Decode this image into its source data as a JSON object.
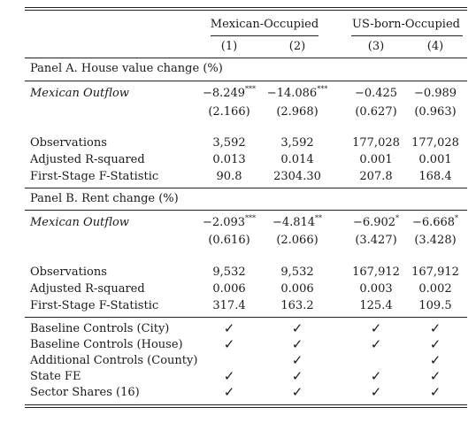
{
  "header": {
    "group_left": "Mexican-Occupied",
    "group_right": "US-born-Occupied",
    "columns": [
      "(1)",
      "(2)",
      "(3)",
      "(4)"
    ]
  },
  "panelA": {
    "title": "Panel A. House value change (%)",
    "var_label": "Mexican Outflow",
    "coef": [
      {
        "value": "−8.249",
        "stars": "***"
      },
      {
        "value": "−14.086",
        "stars": "***"
      },
      {
        "value": "−0.425",
        "stars": ""
      },
      {
        "value": "−0.989",
        "stars": ""
      }
    ],
    "se": [
      "(2.166)",
      "(2.968)",
      "(0.627)",
      "(0.963)"
    ],
    "stats": [
      {
        "label": "Observations",
        "values": [
          "3,592",
          "3,592",
          "177,028",
          "177,028"
        ]
      },
      {
        "label": "Adjusted R-squared",
        "values": [
          "0.013",
          "0.014",
          "0.001",
          "0.001"
        ]
      },
      {
        "label": "First-Stage F-Statistic",
        "values": [
          "90.8",
          "2304.30",
          "207.8",
          "168.4"
        ]
      }
    ]
  },
  "panelB": {
    "title": "Panel B. Rent change (%)",
    "var_label": "Mexican Outflow",
    "coef": [
      {
        "value": "−2.093",
        "stars": "***"
      },
      {
        "value": "−4.814",
        "stars": "**"
      },
      {
        "value": "−6.902",
        "stars": "*"
      },
      {
        "value": "−6.668",
        "stars": "*"
      }
    ],
    "se": [
      "(0.616)",
      "(2.066)",
      "(3.427)",
      "(3.428)"
    ],
    "stats": [
      {
        "label": "Observations",
        "values": [
          "9,532",
          "9,532",
          "167,912",
          "167,912"
        ]
      },
      {
        "label": "Adjusted R-squared",
        "values": [
          "0.006",
          "0.006",
          "0.003",
          "0.002"
        ]
      },
      {
        "label": "First-Stage F-Statistic",
        "values": [
          "317.4",
          "163.2",
          "125.4",
          "109.5"
        ]
      }
    ]
  },
  "controls": [
    {
      "label": "Baseline Controls (City)",
      "marks": [
        true,
        true,
        true,
        true
      ]
    },
    {
      "label": "Baseline Controls (House)",
      "marks": [
        true,
        true,
        true,
        true
      ]
    },
    {
      "label": "Additional Controls (County)",
      "marks": [
        false,
        true,
        false,
        true
      ]
    },
    {
      "label": "State FE",
      "marks": [
        true,
        true,
        true,
        true
      ]
    },
    {
      "label": "Sector Shares (16)",
      "marks": [
        true,
        true,
        true,
        true
      ]
    }
  ],
  "check_glyph": "✓"
}
